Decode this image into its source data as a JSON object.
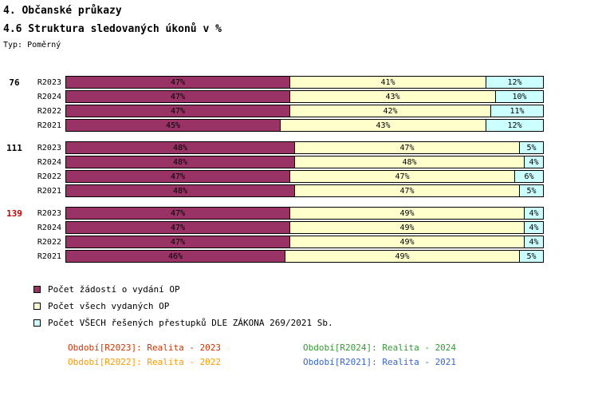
{
  "header": {
    "title": "4. Občanské průkazy",
    "subtitle": "4.6 Struktura sledovaných úkonů v %",
    "type_label": "Typ: Poměrný"
  },
  "chart_data": {
    "type": "bar",
    "orientation": "horizontal",
    "stacked": true,
    "xlim": [
      0,
      100
    ],
    "unit": "%",
    "series_names": [
      "Počet žádostí o vydání OP",
      "Počet všech vydaných OP",
      "Počet VŠECH řešených přestupků DLE ZÁKONA  269/2021 Sb."
    ],
    "colors": [
      "#993366",
      "#FFFFCC",
      "#CCFFFF"
    ],
    "groups": [
      {
        "label": "76",
        "label_color": "#000000",
        "rows": [
          {
            "period": "R2023",
            "values": [
              47,
              41,
              12
            ]
          },
          {
            "period": "R2024",
            "values": [
              47,
              43,
              10
            ]
          },
          {
            "period": "R2022",
            "values": [
              47,
              42,
              11
            ]
          },
          {
            "period": "R2021",
            "values": [
              45,
              43,
              12
            ]
          }
        ]
      },
      {
        "label": "111",
        "label_color": "#000000",
        "rows": [
          {
            "period": "R2023",
            "values": [
              48,
              47,
              5
            ]
          },
          {
            "period": "R2024",
            "values": [
              48,
              48,
              4
            ]
          },
          {
            "period": "R2022",
            "values": [
              47,
              47,
              6
            ]
          },
          {
            "period": "R2021",
            "values": [
              48,
              47,
              5
            ]
          }
        ]
      },
      {
        "label": "139",
        "label_color": "#CC0000",
        "rows": [
          {
            "period": "R2023",
            "values": [
              47,
              49,
              4
            ]
          },
          {
            "period": "R2024",
            "values": [
              47,
              49,
              4
            ]
          },
          {
            "period": "R2022",
            "values": [
              47,
              49,
              4
            ]
          },
          {
            "period": "R2021",
            "values": [
              46,
              49,
              5
            ]
          }
        ]
      }
    ]
  },
  "footer": {
    "items": [
      {
        "label": "Období[R2023]: Realita - 2023",
        "color": "#CC3300"
      },
      {
        "label": "Období[R2024]: Realita - 2024",
        "color": "#339933"
      },
      {
        "label": "Období[R2022]: Realita - 2022",
        "color": "#FF9900"
      },
      {
        "label": "Období[R2021]: Realita - 2021",
        "color": "#3366CC"
      }
    ]
  }
}
